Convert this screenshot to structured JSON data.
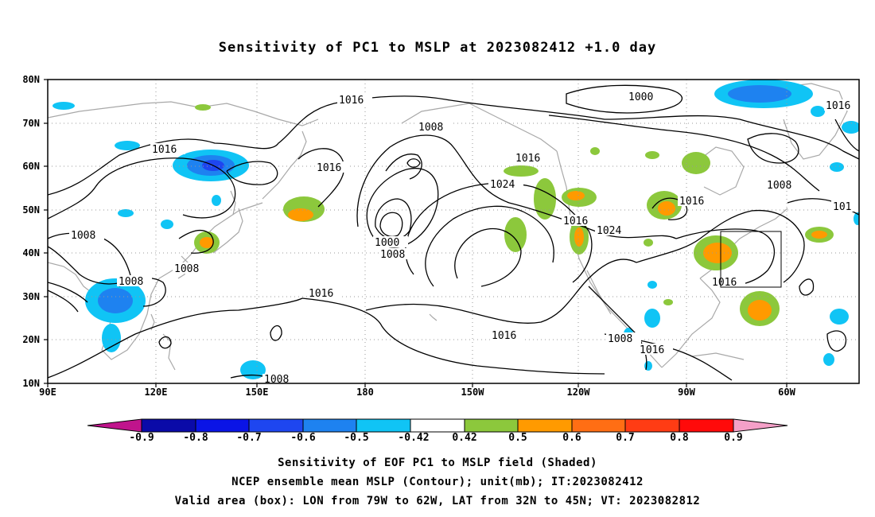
{
  "title": "Sensitivity of PC1 to MSLP at 2023082412 +1.0 day",
  "lat_labels": [
    "80N",
    "70N",
    "60N",
    "50N",
    "40N",
    "30N",
    "20N",
    "10N"
  ],
  "lon_labels": [
    "90E",
    "120E",
    "150E",
    "180",
    "150W",
    "120W",
    "90W",
    "60W"
  ],
  "contour_labels": [
    "1016",
    "1016",
    "1016",
    "1008",
    "1008",
    "1008",
    "1008",
    "1000",
    "1008",
    "1016",
    "1024",
    "1016",
    "1016",
    "1024",
    "1016",
    "1008",
    "1016",
    "1000",
    "1016",
    "1008",
    "1016",
    "1016",
    "101"
  ],
  "colorbar": {
    "ticks": [
      "-0.9",
      "-0.8",
      "-0.7",
      "-0.6",
      "-0.5",
      "-0.42",
      "0.42",
      "0.5",
      "0.6",
      "0.7",
      "0.8",
      "0.9"
    ],
    "colors": {
      "below": "#c0148c",
      "b1": "#0a0aa8",
      "b2": "#0a14e6",
      "b3": "#1e46f0",
      "b4": "#1e82f0",
      "b5": "#10c4f5",
      "neutral": "#ffffff",
      "p1": "#8cc83c",
      "p2": "#ff9a00",
      "p3": "#ff6e14",
      "p4": "#ff3c14",
      "p5": "#ff0a0a",
      "above": "#f5a0c8"
    }
  },
  "valid_box": {
    "lon": [
      -79,
      -62
    ],
    "lat": [
      32,
      45
    ]
  },
  "captions": [
    "Sensitivity of EOF PC1 to MSLP field (Shaded)",
    "NCEP ensemble mean MSLP (Contour); unit(mb); IT:2023082412",
    "Valid area (box): LON from 79W to 62W, LAT from 32N to 45N; VT: 2023082812"
  ]
}
